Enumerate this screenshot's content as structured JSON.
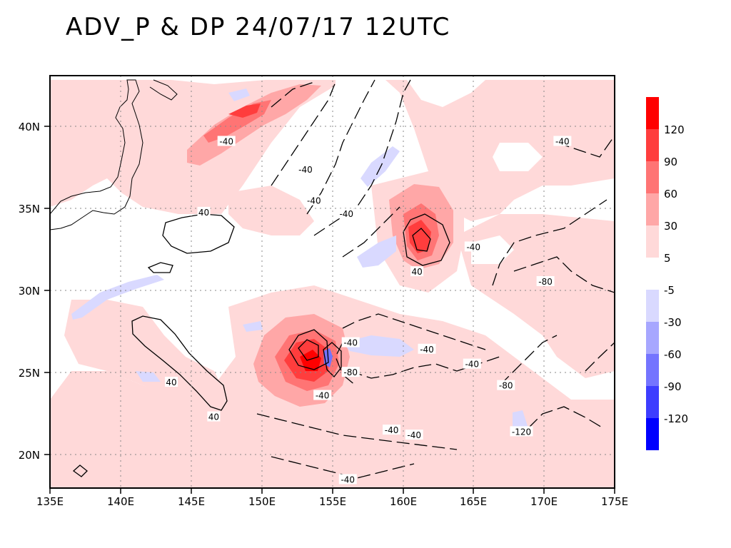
{
  "title": "ADV_P & DP 24/07/17 12UTC",
  "map": {
    "x_labels": [
      "135E",
      "140E",
      "145E",
      "150E",
      "155E",
      "160E",
      "165E",
      "170E",
      "175E"
    ],
    "y_labels": [
      "40N",
      "35N",
      "30N",
      "25N",
      "20N"
    ],
    "lon_range": [
      135,
      175
    ],
    "lat_range": [
      18,
      43
    ],
    "colors": {
      "pos_5": "#ffd9d9",
      "pos_30": "#ffa7a7",
      "pos_60": "#ff7474",
      "pos_90": "#ff3d3d",
      "pos_120": "#ff0000",
      "neg_5": "#d9d9ff",
      "neg_30": "#a7a7ff",
      "neg_60": "#7474ff",
      "neg_90": "#3d3dff",
      "neg_120": "#0000ff"
    }
  },
  "colorbar": {
    "labels": [
      "120",
      "90",
      "60",
      "30",
      "5",
      "-5",
      "-30",
      "-60",
      "-90",
      "-120"
    ]
  },
  "contour_labels": [
    {
      "text": "-40",
      "lon": 147.5,
      "lat": 39.0
    },
    {
      "text": "-40",
      "lon": 153.1,
      "lat": 37.3
    },
    {
      "text": "-40",
      "lon": 153.7,
      "lat": 35.4
    },
    {
      "text": "-40",
      "lon": 156.0,
      "lat": 34.6
    },
    {
      "text": "40",
      "lon": 145.9,
      "lat": 34.7
    },
    {
      "text": "40",
      "lon": 161.0,
      "lat": 31.1
    },
    {
      "text": "-40",
      "lon": 165.0,
      "lat": 32.6
    },
    {
      "text": "-40",
      "lon": 171.3,
      "lat": 39.0
    },
    {
      "text": "-80",
      "lon": 170.1,
      "lat": 30.5
    },
    {
      "text": "-40",
      "lon": 156.3,
      "lat": 26.8
    },
    {
      "text": "-40",
      "lon": 161.7,
      "lat": 26.4
    },
    {
      "text": "-80",
      "lon": 156.3,
      "lat": 25.0
    },
    {
      "text": "-40",
      "lon": 164.9,
      "lat": 25.5
    },
    {
      "text": "-80",
      "lon": 167.3,
      "lat": 24.2
    },
    {
      "text": "40",
      "lon": 143.6,
      "lat": 24.4
    },
    {
      "text": "-40",
      "lon": 154.3,
      "lat": 23.6
    },
    {
      "text": "40",
      "lon": 146.6,
      "lat": 22.3
    },
    {
      "text": "-40",
      "lon": 159.2,
      "lat": 21.5
    },
    {
      "text": "-40",
      "lon": 160.8,
      "lat": 21.2
    },
    {
      "text": "-120",
      "lon": 168.4,
      "lat": 21.4
    },
    {
      "text": "-40",
      "lon": 156.1,
      "lat": 18.5
    }
  ]
}
